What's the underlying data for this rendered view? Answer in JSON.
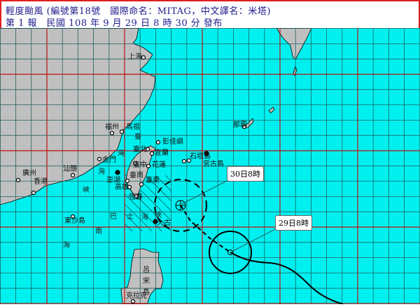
{
  "header": {
    "line1": "輕度颱風 (編號第18號　國際命名：MITAG，中文譯名：米塔)",
    "line2": "第 1 報　民國 108 年 9 月 29 日 8 時 30 分 發布"
  },
  "colors": {
    "sea": "#00f0f0",
    "land": "#c0c0c0",
    "grid_minor": "#206060",
    "grid_major": "#c01010",
    "border": "#e02020",
    "header_text": "#1a1a8c"
  },
  "places": {
    "shanghai": "上海",
    "fuzhou": "福州",
    "matsu": "馬祖",
    "pengjia": "彭佳嶼",
    "taipei": "臺北",
    "yilan": "宜蘭",
    "taichung": "臺中",
    "hualien": "花蓮",
    "tainan": "臺南",
    "taitung": "臺東",
    "kaohsiung": "高雄",
    "hengchun": "恆春",
    "penghu": "澎湖",
    "kinmen": "金門",
    "shantou": "汕頭",
    "guangzhou": "廣州",
    "hongkong": "香港",
    "dongsha": "東沙島",
    "ishigaki": "石垣島",
    "miyako": "宮古島",
    "naha": "那霸",
    "luzon": "呂宋島",
    "clark": "克拉克",
    "dagu": "大古"
  },
  "seas": {
    "taiwan_strait": [
      "臺",
      "灣",
      "海",
      "峽"
    ],
    "bashi_channel": [
      "巴",
      "士",
      "海",
      "峽"
    ],
    "south_sea": [
      "南",
      "海"
    ]
  },
  "forecast": {
    "current_label": "29日8時",
    "forecast_label": "30日8時"
  }
}
